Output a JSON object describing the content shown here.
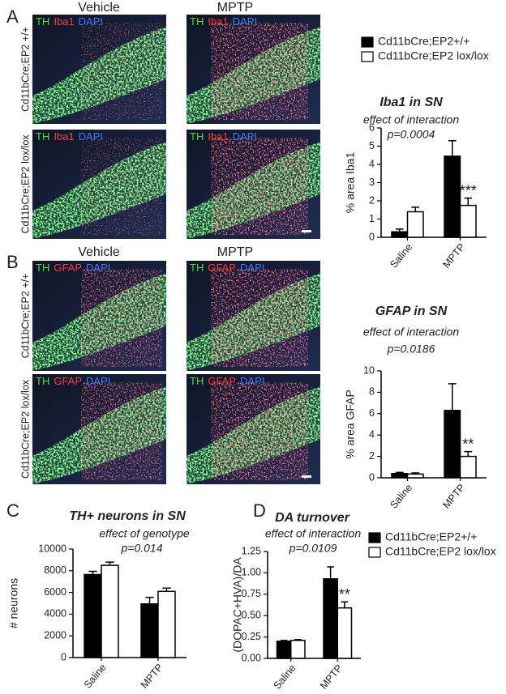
{
  "figure": {
    "panel_a": {
      "letter": "A",
      "columns": [
        "Vehicle",
        "MPTP"
      ],
      "rows": [
        "Cd11bCre;EP2 +/+",
        "Cd11bCre;EP2 lox/lox"
      ],
      "stains": [
        "TH",
        "Iba1",
        "DAPI"
      ]
    },
    "panel_b": {
      "letter": "B",
      "columns": [
        "Vehicle",
        "MPTP"
      ],
      "rows": [
        "Cd11bCre;EP2 +/+",
        "Cd11bCre;EP2 lox/lox"
      ],
      "stains": [
        "TH",
        "GFAP",
        "DAPI"
      ]
    },
    "panel_c": {
      "letter": "C"
    },
    "panel_d": {
      "letter": "D"
    }
  },
  "chart_data": [
    {
      "type": "bar",
      "title": "Iba1 in SN",
      "subtitle": "effect of interaction",
      "annotation": "p=0.0004",
      "y_label": "% area Iba1",
      "categories": [
        "Saline",
        "MPTP"
      ],
      "series": [
        {
          "name": "Cd11bCre;EP2+/+",
          "color": "#000000",
          "values": [
            0.3,
            4.45
          ],
          "errors": [
            0.15,
            0.85
          ]
        },
        {
          "name": "Cd11bCre;EP2 lox/lox",
          "color": "#ffffff",
          "values": [
            1.4,
            1.75
          ],
          "errors": [
            0.25,
            0.4
          ],
          "significance": [
            null,
            "***"
          ]
        }
      ],
      "ylim": [
        0,
        6
      ],
      "yticks": [
        0,
        1,
        2,
        3,
        4,
        5,
        6
      ]
    },
    {
      "type": "bar",
      "title": "GFAP in SN",
      "subtitle": "effect of interaction",
      "annotation": "p=0.0186",
      "y_label": "% area GFAP",
      "categories": [
        "Saline",
        "MPTP"
      ],
      "series": [
        {
          "color": "#000000",
          "values": [
            0.4,
            6.3
          ],
          "errors": [
            0.1,
            2.5
          ]
        },
        {
          "color": "#ffffff",
          "values": [
            0.35,
            2.0
          ],
          "errors": [
            0.1,
            0.45
          ],
          "significance": [
            null,
            "**"
          ]
        }
      ],
      "ylim": [
        0,
        10
      ],
      "yticks": [
        0,
        2,
        4,
        6,
        8,
        10
      ]
    },
    {
      "type": "bar",
      "title": "TH+ neurons in SN",
      "subtitle": "effect of genotype",
      "annotation": "p=0.014",
      "y_label": "# neurons",
      "categories": [
        "Saline",
        "MPTP"
      ],
      "series": [
        {
          "color": "#000000",
          "values": [
            7650,
            4950
          ],
          "errors": [
            300,
            600
          ]
        },
        {
          "color": "#ffffff",
          "values": [
            8500,
            6100
          ],
          "errors": [
            300,
            300
          ]
        }
      ],
      "ylim": [
        0,
        10000
      ],
      "yticks": [
        0,
        2000,
        4000,
        6000,
        8000,
        10000
      ]
    },
    {
      "type": "bar",
      "title": "DA turnover",
      "subtitle": "effect of interaction",
      "annotation": "p=0.0109",
      "y_label": "(DOPAC+HVA)/DA",
      "categories": [
        "Saline",
        "MPTP"
      ],
      "series": [
        {
          "name": "Cd11bCre;EP2+/+",
          "color": "#000000",
          "values": [
            0.2,
            0.93
          ],
          "errors": [
            0.01,
            0.14
          ]
        },
        {
          "name": "Cd11bCre;EP2 lox/lox",
          "color": "#ffffff",
          "values": [
            0.21,
            0.59
          ],
          "errors": [
            0.01,
            0.07
          ],
          "significance": [
            null,
            "**"
          ]
        }
      ],
      "ylim": [
        0,
        1.25
      ],
      "yticks": [
        {
          "value": 0,
          "label": "0.00"
        },
        {
          "value": 0.25,
          "label": "0.25"
        },
        {
          "value": 0.5,
          "label": "0.50"
        },
        {
          "value": 0.75,
          "label": "0.75"
        },
        {
          "value": 1,
          "label": "1.00"
        },
        {
          "value": 1.25,
          "label": "1.25"
        }
      ]
    }
  ]
}
